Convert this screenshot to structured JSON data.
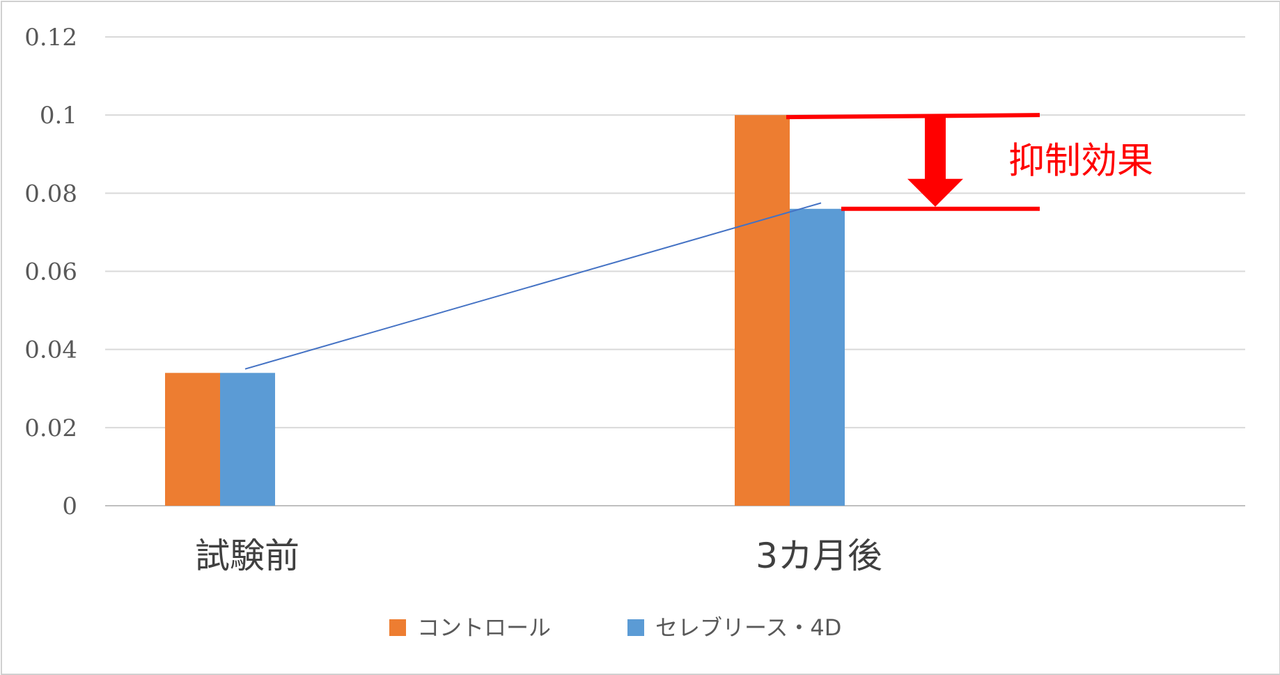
{
  "chart_data": {
    "type": "bar",
    "title": "",
    "xlabel": "",
    "ylabel": "",
    "categories": [
      "試験前",
      "3カ月後"
    ],
    "series": [
      {
        "name": "コントロール",
        "color": "#ed7d31",
        "values": [
          0.034,
          0.1
        ]
      },
      {
        "name": "セレブリース・4D",
        "color": "#5b9bd5",
        "values": [
          0.034,
          0.076
        ]
      }
    ],
    "ylim": [
      0,
      0.12
    ],
    "yticks": [
      "0",
      "0.02",
      "0.04",
      "0.06",
      "0.08",
      "0.1",
      "0.12"
    ],
    "grid": true,
    "legend_position": "bottom",
    "trend_line": {
      "color": "#4472c4",
      "from": {
        "category": "試験前",
        "y": 0.035
      },
      "to": {
        "category": "3カ月後",
        "y": 0.0775
      }
    },
    "annotation": {
      "text": "抑制効果",
      "color": "#ff0000",
      "from_value": 0.1,
      "to_value": 0.076
    }
  }
}
